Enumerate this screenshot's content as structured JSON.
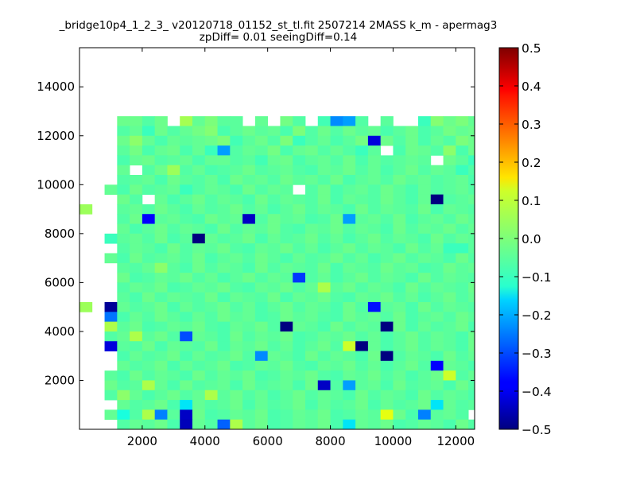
{
  "chart_data": {
    "type": "heatmap",
    "title": "_bridge10p4_1_2_3_ v20120718_01152_st_tl.fit 2507214 2MASS k_m - apermag3",
    "subtitle": "zpDiff= 0.01 seeingDiff=0.14",
    "xlabel": "",
    "ylabel": "",
    "xlim": [
      0,
      12600
    ],
    "ylim": [
      0,
      15600
    ],
    "x_ticks": [
      2000,
      4000,
      6000,
      8000,
      10000,
      12000
    ],
    "y_ticks": [
      2000,
      4000,
      6000,
      8000,
      10000,
      12000,
      14000
    ],
    "x_tick_labels": [
      "2000",
      "4000",
      "6000",
      "8000",
      "10000",
      "12000"
    ],
    "y_tick_labels": [
      "2000",
      "4000",
      "6000",
      "8000",
      "10000",
      "12000",
      "14000"
    ],
    "colorbar": {
      "cmap": "jet",
      "vmin": -0.5,
      "vmax": 0.5,
      "ticks": [
        0.5,
        0.4,
        0.3,
        0.2,
        0.1,
        0.0,
        -0.1,
        -0.2,
        -0.3,
        -0.4,
        -0.5
      ],
      "tick_labels": [
        "0.5",
        "0.4",
        "0.3",
        "0.2",
        "0.1",
        "0.0",
        "−0.1",
        "−0.2",
        "−0.3",
        "−0.4",
        "−0.5"
      ]
    },
    "grid": false,
    "bin_width": 400,
    "cells_note": "row 0 = highest y bin (15200-15600); column 0 = x bin 0-400; null = empty",
    "grid_rows": [
      [
        null,
        null,
        null,
        -0.02,
        -0.02,
        -0.05,
        -0.02,
        null,
        0.05,
        -0.03,
        0.0,
        -0.04,
        -0.04,
        null,
        -0.03,
        null,
        -0.01,
        -0.05,
        null,
        -0.07,
        -0.24,
        -0.22,
        -0.05,
        null,
        -0.04,
        null,
        null,
        -0.08,
        0.01,
        -0.02,
        0.0,
        -0.03,
        null,
        null,
        null,
        null
      ],
      [
        null,
        null,
        null,
        -0.05,
        -0.03,
        -0.08,
        -0.02,
        -0.05,
        -0.03,
        -0.01,
        0.01,
        -0.06,
        -0.04,
        -0.02,
        -0.04,
        -0.03,
        -0.06,
        0.0,
        -0.05,
        -0.02,
        -0.05,
        -0.02,
        -0.04,
        -0.03,
        -0.06,
        -0.04,
        -0.02,
        -0.06,
        -0.04,
        -0.01,
        -0.03,
        -0.02,
        -0.05,
        -0.06,
        null,
        null
      ],
      [
        null,
        null,
        null,
        -0.02,
        0.02,
        -0.03,
        -0.06,
        -0.03,
        -0.04,
        -0.03,
        -0.02,
        0.0,
        -0.07,
        -0.04,
        -0.02,
        -0.05,
        0.0,
        -0.08,
        -0.05,
        -0.03,
        -0.06,
        -0.04,
        -0.01,
        -0.42,
        -0.02,
        -0.05,
        -0.02,
        -0.06,
        -0.03,
        -0.05,
        0.0,
        -0.02,
        -0.08,
        -0.03,
        -0.05,
        null
      ],
      [
        null,
        null,
        null,
        -0.04,
        -0.01,
        -0.06,
        -0.03,
        -0.02,
        -0.06,
        -0.03,
        -0.08,
        -0.22,
        -0.05,
        -0.03,
        -0.04,
        -0.01,
        -0.06,
        -0.03,
        -0.02,
        -0.05,
        -0.03,
        -0.05,
        -0.08,
        -0.04,
        null,
        -0.06,
        -0.02,
        -0.03,
        -0.05,
        0.02,
        -0.06,
        -0.02,
        -0.04,
        -0.04,
        -0.06,
        null
      ],
      [
        null,
        null,
        null,
        -0.06,
        -0.03,
        -0.02,
        -0.05,
        -0.04,
        -0.03,
        -0.06,
        -0.03,
        -0.03,
        -0.05,
        -0.04,
        -0.07,
        -0.03,
        -0.02,
        -0.06,
        -0.04,
        -0.03,
        -0.05,
        -0.02,
        -0.06,
        -0.03,
        -0.05,
        -0.04,
        -0.03,
        -0.04,
        null,
        -0.02,
        -0.04,
        -0.08,
        -0.03,
        -0.05,
        null,
        null
      ],
      [
        null,
        null,
        null,
        -0.03,
        null,
        -0.05,
        -0.02,
        0.04,
        -0.05,
        -0.03,
        -0.06,
        -0.05,
        -0.04,
        -0.02,
        -0.05,
        -0.04,
        -0.03,
        -0.05,
        -0.06,
        -0.03,
        -0.04,
        -0.02,
        -0.05,
        -0.03,
        -0.06,
        -0.04,
        -0.02,
        -0.05,
        -0.03,
        -0.04,
        -0.08,
        -0.05,
        -0.03,
        -0.04,
        null,
        null
      ],
      [
        null,
        null,
        null,
        -0.05,
        -0.04,
        -0.03,
        -0.06,
        -0.02,
        -0.04,
        -0.05,
        -0.03,
        -0.06,
        -0.02,
        -0.04,
        -0.03,
        -0.05,
        -0.02,
        -0.04,
        -0.03,
        -0.05,
        -0.02,
        -0.06,
        -0.04,
        -0.03,
        -0.05,
        -0.02,
        -0.04,
        -0.03,
        -0.05,
        -0.04,
        -0.03,
        -0.06,
        -0.02,
        -0.04,
        null,
        null
      ],
      [
        null,
        null,
        -0.03,
        -0.06,
        -0.02,
        -0.05,
        -0.04,
        -0.03,
        -0.08,
        -0.05,
        -0.03,
        -0.04,
        -0.06,
        -0.02,
        -0.05,
        -0.03,
        -0.04,
        null,
        -0.05,
        -0.02,
        -0.06,
        -0.04,
        -0.03,
        -0.05,
        -0.02,
        -0.04,
        -0.06,
        -0.03,
        -0.05,
        -0.04,
        -0.03,
        -0.05,
        -0.12,
        null,
        null,
        null
      ],
      [
        null,
        null,
        null,
        -0.02,
        -0.05,
        null,
        -0.03,
        -0.06,
        -0.04,
        -0.02,
        -0.05,
        -0.03,
        -0.04,
        -0.06,
        -0.02,
        -0.05,
        -0.03,
        -0.04,
        -0.05,
        -0.02,
        -0.06,
        -0.03,
        -0.04,
        -0.05,
        -0.02,
        -0.04,
        -0.06,
        -0.03,
        -0.5,
        -0.05,
        -0.04,
        -0.03,
        -0.05,
        -0.18,
        null,
        null
      ],
      [
        0.04,
        null,
        null,
        -0.04,
        -0.03,
        -0.05,
        -0.02,
        -0.04,
        -0.06,
        -0.03,
        -0.05,
        -0.04,
        -0.02,
        -0.05,
        -0.03,
        -0.06,
        -0.04,
        -0.02,
        -0.05,
        -0.03,
        -0.04,
        -0.06,
        -0.02,
        -0.05,
        -0.03,
        -0.04,
        -0.05,
        -0.02,
        -0.06,
        -0.03,
        -0.04,
        -0.05,
        -0.03,
        null,
        null,
        -0.04
      ],
      [
        null,
        null,
        null,
        -0.05,
        -0.02,
        -0.38,
        -0.04,
        -0.03,
        -0.05,
        -0.06,
        -0.02,
        -0.04,
        -0.03,
        -0.44,
        -0.05,
        -0.02,
        -0.04,
        -0.03,
        -0.06,
        -0.05,
        -0.02,
        -0.22,
        -0.04,
        -0.03,
        -0.05,
        -0.02,
        -0.06,
        -0.04,
        -0.03,
        -0.05,
        -0.02,
        -0.04,
        -0.03,
        -0.05,
        null,
        null
      ],
      [
        null,
        null,
        null,
        -0.03,
        -0.06,
        -0.04,
        -0.02,
        -0.05,
        -0.03,
        -0.04,
        -0.06,
        -0.02,
        -0.05,
        -0.03,
        -0.04,
        -0.02,
        -0.05,
        -0.06,
        -0.03,
        -0.04,
        -0.02,
        -0.05,
        -0.03,
        -0.04,
        -0.06,
        -0.02,
        -0.05,
        -0.03,
        -0.04,
        -0.02,
        -0.05,
        -0.03,
        -0.06,
        null,
        null,
        null
      ],
      [
        null,
        null,
        -0.08,
        -0.04,
        -0.03,
        -0.05,
        -0.02,
        -0.06,
        -0.04,
        -0.5,
        -0.03,
        -0.05,
        -0.04,
        -0.02,
        -0.06,
        -0.03,
        -0.05,
        -0.04,
        -0.02,
        -0.05,
        -0.03,
        -0.06,
        -0.04,
        -0.02,
        -0.05,
        -0.03,
        -0.04,
        -0.06,
        -0.02,
        -0.05,
        -0.03,
        -0.04,
        -0.05,
        -0.02,
        null,
        null
      ],
      [
        null,
        null,
        null,
        -0.05,
        -0.03,
        -0.04,
        -0.06,
        -0.02,
        -0.05,
        -0.03,
        -0.04,
        -0.02,
        -0.05,
        -0.06,
        -0.03,
        -0.04,
        -0.02,
        -0.05,
        -0.03,
        -0.06,
        -0.04,
        -0.02,
        -0.05,
        -0.03,
        -0.04,
        -0.06,
        -0.02,
        -0.05,
        -0.03,
        -0.08,
        -0.08,
        -0.04,
        -0.05,
        -0.03,
        -0.06,
        -0.08
      ],
      [
        null,
        null,
        -0.03,
        -0.06,
        -0.02,
        -0.05,
        -0.04,
        -0.03,
        -0.05,
        -0.02,
        -0.06,
        -0.04,
        -0.03,
        -0.05,
        -0.02,
        -0.04,
        -0.06,
        -0.03,
        -0.05,
        -0.04,
        -0.02,
        -0.05,
        -0.03,
        -0.06,
        -0.04,
        -0.02,
        -0.05,
        -0.03,
        -0.04,
        -0.06,
        -0.02,
        -0.05,
        -0.03,
        -0.04,
        null,
        null
      ],
      [
        null,
        null,
        null,
        -0.04,
        -0.05,
        -0.03,
        0.02,
        -0.04,
        -0.06,
        -0.02,
        -0.05,
        -0.03,
        -0.04,
        -0.06,
        -0.02,
        -0.05,
        -0.03,
        -0.04,
        -0.05,
        -0.02,
        -0.06,
        -0.03,
        -0.04,
        -0.05,
        -0.02,
        -0.04,
        -0.03,
        -0.06,
        -0.05,
        -0.02,
        -0.04,
        -0.03,
        -0.05,
        -0.06,
        null,
        null
      ],
      [
        null,
        null,
        null,
        -0.02,
        -0.06,
        -0.05,
        -0.03,
        -0.04,
        -0.02,
        -0.05,
        -0.03,
        -0.06,
        -0.04,
        -0.02,
        -0.05,
        -0.03,
        -0.04,
        -0.32,
        -0.05,
        -0.03,
        -0.06,
        -0.04,
        -0.02,
        -0.05,
        -0.03,
        -0.04,
        -0.06,
        -0.02,
        -0.05,
        -0.03,
        -0.04,
        -0.05,
        -0.02,
        -0.06,
        null,
        null
      ],
      [
        null,
        null,
        null,
        -0.05,
        -0.03,
        -0.04,
        -0.02,
        -0.06,
        -0.05,
        -0.03,
        -0.04,
        -0.02,
        -0.05,
        -0.06,
        -0.03,
        -0.04,
        -0.02,
        -0.05,
        -0.03,
        0.06,
        -0.04,
        -0.02,
        -0.05,
        -0.03,
        -0.04,
        -0.06,
        -0.02,
        -0.05,
        -0.03,
        -0.04,
        -0.05,
        -0.02,
        -0.06,
        -0.03,
        null,
        null
      ],
      [
        null,
        null,
        null,
        -0.04,
        -0.06,
        -0.02,
        -0.05,
        -0.03,
        -0.04,
        -0.05,
        -0.02,
        -0.06,
        -0.03,
        -0.04,
        -0.05,
        -0.02,
        -0.06,
        -0.03,
        -0.04,
        -0.02,
        -0.05,
        -0.06,
        -0.03,
        -0.04,
        -0.02,
        -0.05,
        -0.03,
        -0.06,
        -0.04,
        -0.02,
        -0.05,
        -0.03,
        -0.04,
        -0.06,
        null,
        null
      ],
      [
        0.04,
        null,
        -0.48,
        -0.03,
        -0.05,
        -0.04,
        -0.02,
        -0.06,
        -0.03,
        -0.05,
        -0.04,
        -0.02,
        -0.05,
        -0.03,
        -0.06,
        -0.04,
        -0.02,
        -0.05,
        -0.03,
        -0.04,
        -0.06,
        -0.02,
        -0.05,
        -0.36,
        -0.04,
        -0.03,
        -0.06,
        -0.02,
        -0.05,
        -0.03,
        -0.04,
        -0.05,
        -0.02,
        -0.06,
        null,
        -0.04
      ],
      [
        null,
        null,
        -0.26,
        -0.06,
        -0.03,
        -0.05,
        -0.02,
        -0.04,
        -0.06,
        -0.03,
        -0.05,
        -0.02,
        -0.04,
        -0.03,
        -0.06,
        -0.05,
        -0.02,
        -0.04,
        -0.03,
        -0.05,
        -0.06,
        -0.02,
        -0.04,
        -0.03,
        -0.05,
        -0.02,
        -0.06,
        -0.04,
        -0.03,
        -0.05,
        -0.02,
        -0.04,
        -0.06,
        -0.03,
        -0.05,
        0.02
      ],
      [
        null,
        null,
        0.06,
        -0.04,
        -0.02,
        -0.06,
        -0.05,
        -0.03,
        -0.04,
        -0.02,
        -0.05,
        -0.06,
        -0.03,
        -0.04,
        -0.02,
        -0.05,
        -0.5,
        -0.03,
        -0.04,
        -0.06,
        -0.02,
        -0.05,
        -0.03,
        -0.04,
        -0.5,
        -0.02,
        -0.06,
        -0.03,
        -0.05,
        -0.04,
        -0.02,
        -0.06,
        -0.03,
        -0.05,
        null,
        null
      ],
      [
        null,
        null,
        -0.05,
        -0.03,
        0.06,
        -0.04,
        -0.02,
        -0.05,
        -0.3,
        -0.03,
        -0.04,
        -0.06,
        -0.02,
        -0.05,
        -0.03,
        -0.04,
        -0.02,
        -0.06,
        -0.05,
        -0.03,
        -0.04,
        -0.02,
        -0.05,
        -0.03,
        -0.06,
        -0.04,
        -0.02,
        -0.05,
        -0.03,
        -0.04,
        -0.06,
        -0.02,
        -0.05,
        -0.03,
        null,
        null
      ],
      [
        null,
        null,
        -0.42,
        -0.04,
        -0.05,
        -0.02,
        -0.06,
        -0.03,
        -0.04,
        -0.05,
        -0.02,
        -0.06,
        -0.03,
        -0.04,
        -0.02,
        -0.05,
        -0.03,
        -0.06,
        -0.04,
        -0.02,
        -0.05,
        0.1,
        -0.5,
        -0.03,
        -0.06,
        -0.04,
        -0.02,
        -0.05,
        -0.03,
        -0.04,
        -0.06,
        -0.02,
        -0.05,
        null,
        null,
        null
      ],
      [
        null,
        null,
        null,
        -0.06,
        -0.03,
        -0.05,
        -0.04,
        -0.02,
        -0.06,
        -0.03,
        -0.05,
        -0.04,
        -0.02,
        -0.05,
        -0.24,
        -0.03,
        -0.04,
        -0.06,
        -0.02,
        -0.05,
        -0.03,
        -0.04,
        -0.06,
        -0.02,
        -0.5,
        -0.05,
        -0.03,
        -0.04,
        -0.06,
        -0.02,
        -0.05,
        -0.03,
        -0.04,
        -0.06,
        null,
        null
      ],
      [
        null,
        null,
        null,
        -0.03,
        -0.05,
        -0.04,
        -0.02,
        -0.06,
        -0.03,
        -0.05,
        -0.04,
        -0.02,
        -0.06,
        -0.05,
        -0.03,
        -0.04,
        -0.02,
        -0.05,
        -0.06,
        -0.03,
        -0.04,
        -0.02,
        -0.05,
        -0.03,
        -0.06,
        -0.04,
        -0.02,
        -0.05,
        -0.38,
        -0.03,
        -0.04,
        -0.06,
        -0.02,
        -0.05,
        null,
        null
      ],
      [
        null,
        null,
        -0.04,
        -0.06,
        -0.02,
        -0.05,
        -0.03,
        -0.04,
        -0.06,
        -0.02,
        -0.05,
        -0.03,
        -0.04,
        -0.02,
        -0.06,
        -0.05,
        -0.03,
        -0.04,
        -0.02,
        -0.05,
        -0.06,
        -0.03,
        -0.04,
        -0.02,
        -0.05,
        -0.03,
        -0.06,
        -0.04,
        -0.02,
        0.1,
        -0.05,
        -0.03,
        -0.04,
        0.06,
        null,
        null
      ],
      [
        null,
        null,
        -0.02,
        -0.05,
        -0.04,
        0.06,
        -0.03,
        -0.06,
        -0.02,
        -0.05,
        -0.04,
        -0.03,
        -0.06,
        -0.02,
        -0.05,
        -0.04,
        -0.03,
        -0.06,
        -0.02,
        -0.44,
        -0.05,
        -0.22,
        -0.04,
        -0.03,
        -0.06,
        -0.02,
        -0.05,
        -0.04,
        -0.03,
        -0.06,
        -0.02,
        -0.05,
        -0.04,
        -0.03,
        null,
        null
      ],
      [
        null,
        null,
        -0.05,
        0.02,
        -0.03,
        -0.06,
        -0.04,
        -0.02,
        -0.05,
        -0.03,
        0.06,
        -0.04,
        -0.02,
        -0.05,
        -0.03,
        -0.06,
        -0.04,
        -0.02,
        -0.05,
        -0.03,
        -0.04,
        -0.06,
        -0.02,
        -0.05,
        -0.03,
        -0.04,
        -0.06,
        -0.02,
        -0.05,
        -0.03,
        -0.04,
        -0.06,
        -0.02,
        null,
        null,
        null
      ],
      [
        null,
        null,
        null,
        -0.03,
        -0.05,
        -0.04,
        -0.02,
        -0.06,
        -0.15,
        -0.03,
        -0.05,
        -0.04,
        -0.02,
        -0.06,
        -0.03,
        -0.05,
        -0.04,
        -0.02,
        -0.06,
        -0.03,
        -0.05,
        -0.04,
        -0.02,
        -0.06,
        -0.03,
        -0.05,
        -0.04,
        -0.02,
        -0.15,
        -0.03,
        -0.05,
        -0.04,
        -0.02,
        null,
        null,
        null
      ],
      [
        null,
        null,
        -0.03,
        -0.12,
        -0.05,
        0.06,
        -0.25,
        -0.04,
        -0.44,
        -0.02,
        -0.06,
        -0.05,
        -0.03,
        -0.04,
        -0.02,
        -0.06,
        -0.05,
        -0.03,
        -0.04,
        -0.02,
        -0.06,
        -0.05,
        -0.03,
        -0.04,
        0.13,
        -0.02,
        -0.06,
        -0.25,
        -0.04,
        -0.03,
        -0.05,
        null,
        null,
        null,
        null,
        null
      ],
      [
        null,
        null,
        null,
        -0.05,
        -0.03,
        -0.04,
        -0.02,
        -0.06,
        -0.45,
        -0.03,
        -0.05,
        -0.28,
        0.06,
        -0.04,
        -0.02,
        -0.06,
        -0.05,
        -0.03,
        -0.04,
        -0.02,
        -0.06,
        -0.15,
        -0.03,
        -0.04,
        -0.02,
        -0.06,
        -0.05,
        -0.03,
        -0.04,
        -0.06,
        -0.02,
        -0.05,
        null,
        null,
        null,
        null
      ]
    ]
  }
}
